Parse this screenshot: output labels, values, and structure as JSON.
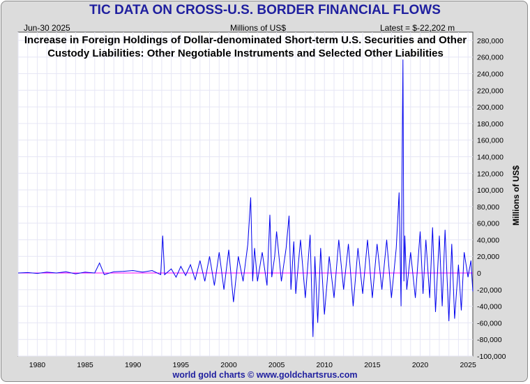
{
  "header": {
    "title": "TIC DATA ON CROSS-U.S. BORDER FINANCIAL FLOWS",
    "date": "Jun-30  2025",
    "units": "Millions of US$",
    "latest": "Latest = $-22,202 m"
  },
  "footer": "world gold charts © www.goldchartsrus.com",
  "colors": {
    "title": "#1f1f9f",
    "series": "#0000ee",
    "zero_line": "#ff00ff",
    "plot_bg": "#ffffff",
    "grid": "#e6e6f5"
  },
  "chart_data": {
    "type": "line",
    "title": "Increase in Foreign Holdings of Dollar-denominated Short-term U.S. Securities and Other Custody Liabilities: Other Negotiable Instruments and Selected Other Liabilities",
    "ylabel": "Millions of US$",
    "ylim": [
      -100000,
      290000
    ],
    "yticks": [
      -100000,
      -80000,
      -60000,
      -40000,
      -20000,
      0,
      20000,
      40000,
      60000,
      80000,
      100000,
      120000,
      140000,
      160000,
      180000,
      200000,
      220000,
      240000,
      260000,
      280000
    ],
    "ytick_labels": [
      "-100,000",
      "-80,000",
      "-60,000",
      "-40,000",
      "-20,000",
      "0",
      "20,000",
      "40,000",
      "60,000",
      "80,000",
      "100,000",
      "120,000",
      "140,000",
      "160,000",
      "180,000",
      "200,000",
      "220,000",
      "240,000",
      "260,000",
      "280,000"
    ],
    "xlim": [
      1978.0,
      2025.5
    ],
    "xticks": [
      1980,
      1985,
      1990,
      1995,
      2000,
      2005,
      2010,
      2015,
      2020,
      2025
    ],
    "xtick_labels": [
      "1980",
      "1985",
      "1990",
      "1995",
      "2000",
      "2005",
      "2010",
      "2015",
      "2020",
      "2025"
    ],
    "grid": true,
    "series": [
      {
        "x": [
          1978.0,
          1979.0,
          1980.0,
          1981.0,
          1982.0,
          1983.0,
          1984.0,
          1985.0,
          1986.0,
          1986.5,
          1987.0,
          1988.0,
          1989.0,
          1990.0,
          1991.0,
          1992.0,
          1992.9,
          1993.1,
          1993.3,
          1994.0,
          1994.5,
          1995.0,
          1995.5,
          1996.0,
          1996.5,
          1997.0,
          1997.5,
          1998.0,
          1998.5,
          1999.0,
          1999.5,
          2000.0,
          2000.5,
          2001.0,
          2001.5,
          2002.0,
          2002.3,
          2002.5,
          2002.7,
          2003.0,
          2003.5,
          2004.0,
          2004.3,
          2004.5,
          2004.8,
          2005.0,
          2005.5,
          2006.0,
          2006.3,
          2006.5,
          2006.8,
          2007.0,
          2007.5,
          2008.0,
          2008.5,
          2008.8,
          2009.0,
          2009.3,
          2009.6,
          2010.0,
          2010.5,
          2011.0,
          2011.5,
          2012.0,
          2012.5,
          2013.0,
          2013.5,
          2014.0,
          2014.5,
          2015.0,
          2015.5,
          2016.0,
          2016.5,
          2017.0,
          2017.5,
          2017.8,
          2018.0,
          2018.2,
          2018.3,
          2018.4,
          2018.6,
          2019.0,
          2019.5,
          2020.0,
          2020.3,
          2020.6,
          2021.0,
          2021.3,
          2021.6,
          2022.0,
          2022.3,
          2022.6,
          2023.0,
          2023.3,
          2023.6,
          2024.0,
          2024.3,
          2024.6,
          2025.0,
          2025.3,
          2025.5
        ],
        "y": [
          0,
          500,
          -500,
          1000,
          0,
          1500,
          -1000,
          1000,
          0,
          12000,
          -2000,
          1500,
          2000,
          3000,
          1000,
          3000,
          -2000,
          45000,
          -2000,
          5000,
          -5000,
          8000,
          -3000,
          10000,
          -8000,
          15000,
          -10000,
          20000,
          -15000,
          25000,
          -20000,
          28000,
          -35000,
          20000,
          -10000,
          35000,
          91000,
          -10000,
          30000,
          -10000,
          25000,
          -15000,
          70000,
          -5000,
          20000,
          50000,
          -10000,
          30000,
          69000,
          -20000,
          38000,
          -25000,
          40000,
          -30000,
          46000,
          -77000,
          20000,
          -60000,
          30000,
          -50000,
          20000,
          -30000,
          40000,
          -20000,
          35000,
          -40000,
          30000,
          -25000,
          40000,
          -30000,
          35000,
          -20000,
          40000,
          -30000,
          30000,
          97000,
          -40000,
          257000,
          -10000,
          45000,
          -20000,
          25000,
          -30000,
          50000,
          -25000,
          40000,
          -30000,
          55000,
          -47000,
          45000,
          -40000,
          52000,
          -58000,
          35000,
          -55000,
          10000,
          -45000,
          25000,
          -5000,
          15000,
          -22202
        ]
      }
    ]
  }
}
